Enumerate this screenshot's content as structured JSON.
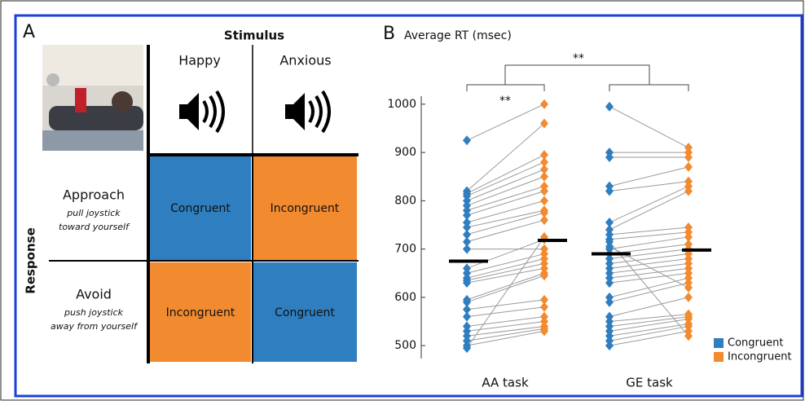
{
  "panel_a": {
    "label": "A",
    "stimulus_title": "Stimulus",
    "columns": [
      "Happy",
      "Anxious"
    ],
    "response_title": "Response",
    "rows": [
      {
        "label": "Approach",
        "desc": [
          "pull joystick",
          "toward yourself"
        ]
      },
      {
        "label": "Avoid",
        "desc": [
          "push joystick",
          "away from yourself"
        ]
      }
    ],
    "cells": [
      [
        "Congruent",
        "Incongruent"
      ],
      [
        "Incongruent",
        "Congruent"
      ]
    ]
  },
  "chart_data": {
    "type": "paired-dot",
    "panel_label": "B",
    "title": "Average RT (msec)",
    "categories": [
      "AA task",
      "GE task"
    ],
    "series": [
      {
        "name": "Congruent",
        "color": "#2f7ebf",
        "values": [
          [
            925,
            820,
            815,
            810,
            800,
            790,
            780,
            770,
            755,
            745,
            730,
            715,
            660,
            650,
            640,
            635,
            630,
            595,
            590,
            575,
            560,
            540,
            530,
            520,
            510,
            500,
            495,
            700
          ],
          [
            995,
            900,
            890,
            830,
            820,
            755,
            740,
            730,
            720,
            700,
            690,
            680,
            670,
            660,
            650,
            640,
            630,
            600,
            590,
            560,
            550,
            540,
            530,
            520,
            510,
            500,
            715,
            705
          ]
        ],
        "mean": [
          675,
          690
        ]
      },
      {
        "name": "Incongruent",
        "color": "#f28a30",
        "values": [
          [
            1000,
            960,
            895,
            880,
            865,
            850,
            830,
            820,
            800,
            780,
            775,
            760,
            720,
            690,
            680,
            670,
            660,
            650,
            645,
            595,
            580,
            560,
            550,
            540,
            535,
            530,
            725,
            700
          ],
          [
            910,
            900,
            890,
            870,
            840,
            830,
            820,
            745,
            735,
            725,
            710,
            700,
            690,
            680,
            670,
            660,
            650,
            640,
            630,
            600,
            565,
            560,
            555,
            545,
            540,
            530,
            520,
            620
          ]
        ],
        "mean": [
          718,
          698
        ]
      }
    ],
    "annotations": [
      "**",
      "**"
    ],
    "ylim": [
      480,
      1020
    ],
    "yticks": [
      500,
      600,
      700,
      800,
      900,
      1000
    ]
  }
}
